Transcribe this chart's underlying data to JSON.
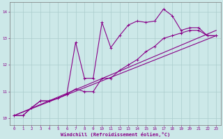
{
  "background_color": "#cce8e8",
  "grid_color": "#aacccc",
  "line_color": "#880088",
  "xlabel": "Windchill (Refroidissement éolien,°C)",
  "xlim": [
    -0.5,
    23.5
  ],
  "ylim": [
    9.75,
    14.35
  ],
  "yticks": [
    10,
    11,
    12,
    13,
    14
  ],
  "xticks": [
    0,
    1,
    2,
    3,
    4,
    5,
    6,
    7,
    8,
    9,
    10,
    11,
    12,
    13,
    14,
    15,
    16,
    17,
    18,
    19,
    20,
    21,
    22,
    23
  ],
  "series1_x": [
    0,
    1,
    2,
    3,
    4,
    5,
    6,
    7,
    8,
    9,
    10,
    11,
    12,
    13,
    14,
    15,
    16,
    17,
    18,
    19,
    20,
    21,
    22,
    23
  ],
  "series1_y": [
    10.1,
    10.1,
    10.4,
    10.65,
    10.65,
    10.75,
    10.9,
    12.85,
    11.5,
    11.5,
    13.6,
    12.65,
    13.1,
    13.5,
    13.65,
    13.6,
    13.65,
    14.1,
    13.85,
    13.3,
    13.4,
    13.4,
    13.1,
    13.1
  ],
  "series2_x": [
    0,
    1,
    2,
    3,
    4,
    5,
    6,
    7,
    8,
    9,
    10,
    11,
    12,
    13,
    14,
    15,
    16,
    17,
    18,
    19,
    20,
    21,
    22,
    23
  ],
  "series2_y": [
    10.1,
    10.1,
    10.4,
    10.65,
    10.65,
    10.75,
    10.9,
    11.1,
    11.0,
    11.0,
    11.5,
    11.5,
    11.8,
    12.0,
    12.2,
    12.5,
    12.7,
    13.0,
    13.1,
    13.2,
    13.3,
    13.3,
    13.1,
    13.1
  ],
  "line3_x": [
    0,
    23
  ],
  "line3_y": [
    10.1,
    13.1
  ],
  "line4_x": [
    0,
    23
  ],
  "line4_y": [
    10.1,
    13.3
  ]
}
